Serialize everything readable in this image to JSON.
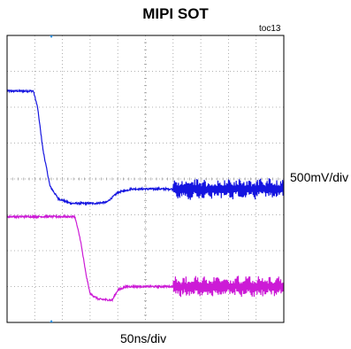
{
  "title": "MIPI SOT",
  "figure_tag": "toc13",
  "vertical_scale_label": "500mV/div",
  "horizontal_scale_label": "50ns/div",
  "colors": {
    "channel_1": "#1515e0",
    "channel_2": "#cc1bd6",
    "grid_dots": "#9a9a9a",
    "frame": "#000000",
    "marker": "#2a8ad8"
  },
  "chart_data": {
    "type": "line",
    "title": "MIPI SOT",
    "xlabel": "50ns/div",
    "ylabel": "500mV/div",
    "xlim": [
      0,
      10
    ],
    "ylim": [
      0,
      8
    ],
    "grid": true,
    "x_unit": "div",
    "y_unit": "div",
    "series": [
      {
        "color": "#1515e0",
        "points": [
          [
            0,
            6.45
          ],
          [
            0.95,
            6.45
          ],
          [
            1.1,
            6.0
          ],
          [
            1.3,
            4.8
          ],
          [
            1.55,
            3.8
          ],
          [
            1.85,
            3.45
          ],
          [
            2.3,
            3.32
          ],
          [
            3.2,
            3.32
          ],
          [
            3.6,
            3.35
          ],
          [
            4.0,
            3.62
          ],
          [
            4.5,
            3.72
          ],
          [
            6.0,
            3.72
          ],
          [
            10.0,
            3.72
          ]
        ],
        "noise_region": [
          6.0,
          10.0
        ],
        "noise_amplitude": 0.3
      },
      {
        "color": "#cc1bd6",
        "points": [
          [
            0,
            2.95
          ],
          [
            2.45,
            2.95
          ],
          [
            2.65,
            2.3
          ],
          [
            2.85,
            1.35
          ],
          [
            3.0,
            0.8
          ],
          [
            3.3,
            0.65
          ],
          [
            3.8,
            0.62
          ],
          [
            4.0,
            0.9
          ],
          [
            4.3,
            1.0
          ],
          [
            6.0,
            1.0
          ],
          [
            10.0,
            1.0
          ]
        ],
        "noise_region": [
          6.0,
          10.0
        ],
        "noise_amplitude": 0.3
      }
    ]
  }
}
